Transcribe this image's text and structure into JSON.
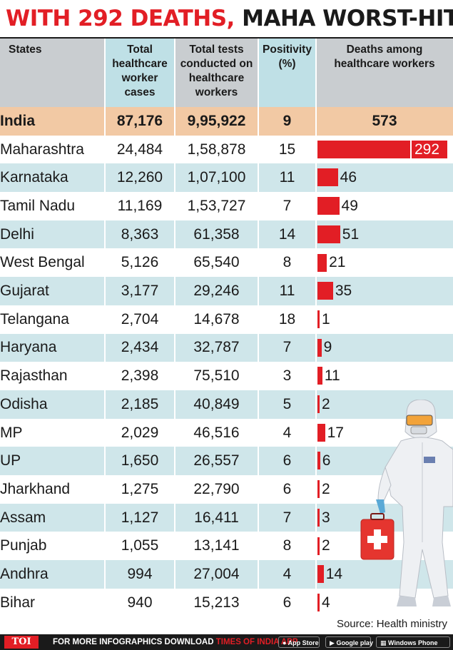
{
  "headline": {
    "part1": "WITH 292 DEATHS,",
    "part2": " MAHA WORST-HIT"
  },
  "headers": {
    "states": "States",
    "cases_l1": "Total",
    "cases_l2": "healthcare",
    "cases_l3": "worker",
    "cases_l4": "cases",
    "tests_l1": "Total tests",
    "tests_l2": "conducted on",
    "tests_l3": "healthcare",
    "tests_l4": "workers",
    "pos_l1": "Positivity",
    "pos_l2": "(%)",
    "deaths_l1": "Deaths among",
    "deaths_l2": "healthcare workers"
  },
  "colors": {
    "accent": "#e21e25",
    "band_blue": "#cfe6ea",
    "header_grey": "#c9cdd0",
    "header_blue": "#bfe0e6",
    "india_tan": "#f2c9a4"
  },
  "chart_data": {
    "type": "table",
    "title": "WITH 292 DEATHS, MAHA WORST-HIT",
    "columns": [
      "States",
      "Total healthcare worker cases",
      "Total tests conducted on healthcare workers",
      "Positivity (%)",
      "Deaths among healthcare workers"
    ],
    "total": {
      "state": "India",
      "cases": "87,176",
      "tests": "9,95,922",
      "positivity": "9",
      "deaths": 573
    },
    "rows": [
      {
        "state": "Maharashtra",
        "cases": "24,484",
        "tests": "1,58,878",
        "positivity": "15",
        "deaths": 292
      },
      {
        "state": "Karnataka",
        "cases": "12,260",
        "tests": "1,07,100",
        "positivity": "11",
        "deaths": 46
      },
      {
        "state": "Tamil Nadu",
        "cases": "11,169",
        "tests": "1,53,727",
        "positivity": "7",
        "deaths": 49
      },
      {
        "state": "Delhi",
        "cases": "8,363",
        "tests": "61,358",
        "positivity": "14",
        "deaths": 51
      },
      {
        "state": "West Bengal",
        "cases": "5,126",
        "tests": "65,540",
        "positivity": "8",
        "deaths": 21
      },
      {
        "state": "Gujarat",
        "cases": "3,177",
        "tests": "29,246",
        "positivity": "11",
        "deaths": 35
      },
      {
        "state": "Telangana",
        "cases": "2,704",
        "tests": "14,678",
        "positivity": "18",
        "deaths": 1
      },
      {
        "state": "Haryana",
        "cases": "2,434",
        "tests": "32,787",
        "positivity": "7",
        "deaths": 9
      },
      {
        "state": "Rajasthan",
        "cases": "2,398",
        "tests": "75,510",
        "positivity": "3",
        "deaths": 11
      },
      {
        "state": "Odisha",
        "cases": "2,185",
        "tests": "40,849",
        "positivity": "5",
        "deaths": 2
      },
      {
        "state": "MP",
        "cases": "2,029",
        "tests": "46,516",
        "positivity": "4",
        "deaths": 17
      },
      {
        "state": "UP",
        "cases": "1,650",
        "tests": "26,557",
        "positivity": "6",
        "deaths": 6
      },
      {
        "state": "Jharkhand",
        "cases": "1,275",
        "tests": "22,790",
        "positivity": "6",
        "deaths": 2
      },
      {
        "state": "Assam",
        "cases": "1,127",
        "tests": "16,411",
        "positivity": "7",
        "deaths": 3
      },
      {
        "state": "Punjab",
        "cases": "1,055",
        "tests": "13,141",
        "positivity": "8",
        "deaths": 2
      },
      {
        "state": "Andhra",
        "cases": "994",
        "tests": "27,004",
        "positivity": "4",
        "deaths": 14
      },
      {
        "state": "Bihar",
        "cases": "940",
        "tests": "15,213",
        "positivity": "6",
        "deaths": 4
      }
    ]
  },
  "source": "Source: Health ministry",
  "footer": {
    "brand": "TOI",
    "text1": "FOR MORE  INFOGRAPHICS DOWNLOAD ",
    "text2": "TIMES OF INDIA APP",
    "appstore": "App Store",
    "googleplay": "Google play",
    "windows": "Windows Phone",
    "appstore_icon": "apple-icon",
    "googleplay_icon": "play-icon",
    "windows_icon": "windows-icon"
  }
}
